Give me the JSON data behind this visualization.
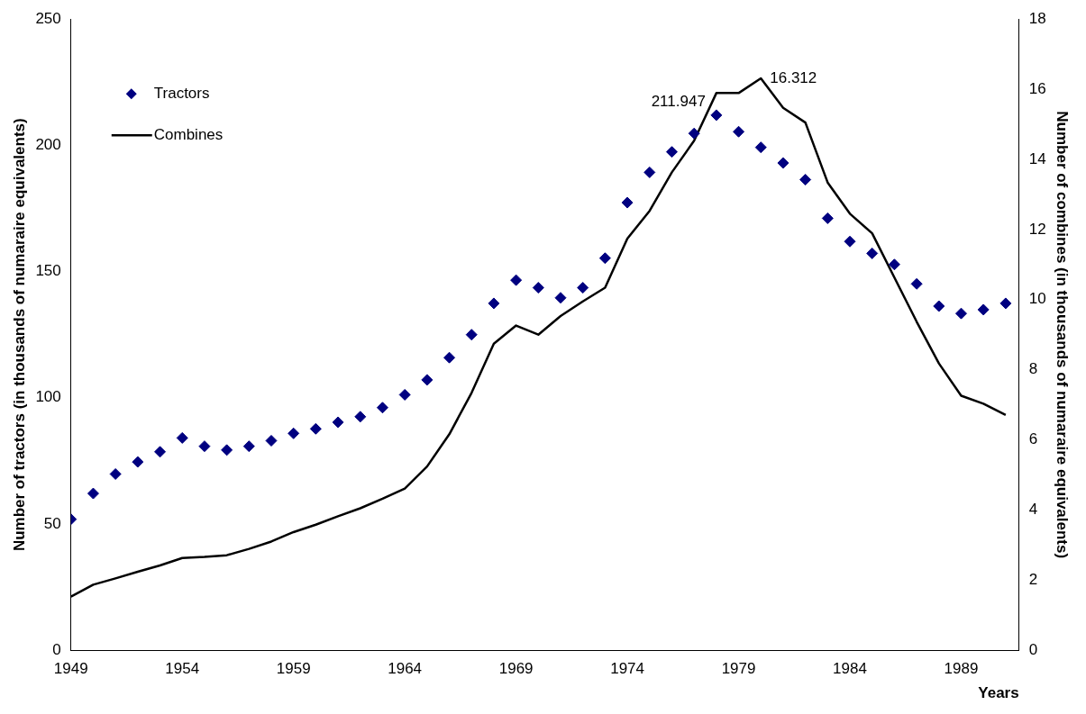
{
  "chart_data": {
    "type": "scatter",
    "xlabel": "Years",
    "ylabel": "Number of tractors (in thousands of numaraire equivalents)",
    "y2label": "Number of combines (in thousands of numaraire equivalents)",
    "x": [
      1949,
      1950,
      1951,
      1952,
      1953,
      1954,
      1955,
      1956,
      1957,
      1958,
      1959,
      1960,
      1961,
      1962,
      1963,
      1964,
      1965,
      1966,
      1967,
      1968,
      1969,
      1970,
      1971,
      1972,
      1973,
      1974,
      1975,
      1976,
      1977,
      1978,
      1979,
      1980,
      1981,
      1982,
      1983,
      1984,
      1985,
      1986,
      1987,
      1988,
      1989,
      1990,
      1991
    ],
    "series": [
      {
        "name": "Tractors",
        "type": "scatter",
        "marker": "diamond",
        "color": "#000080",
        "values": [
          51.9,
          62.1,
          69.8,
          74.6,
          78.6,
          84.1,
          80.8,
          79.3,
          80.8,
          83.0,
          85.9,
          87.7,
          90.3,
          92.5,
          96.1,
          101.2,
          107.1,
          115.9,
          125.0,
          137.4,
          146.6,
          143.6,
          139.6,
          143.6,
          155.3,
          177.3,
          189.3,
          197.4,
          204.7,
          211.947,
          205.4,
          199.2,
          193.0,
          186.4,
          171.1,
          161.9,
          157.2,
          152.8,
          145.1,
          136.3,
          133.4,
          134.9,
          137.4
        ],
        "value_labels": [
          null,
          null,
          null,
          null,
          null,
          null,
          null,
          null,
          null,
          null,
          null,
          null,
          null,
          null,
          null,
          null,
          null,
          null,
          null,
          null,
          null,
          null,
          null,
          null,
          null,
          null,
          null,
          null,
          null,
          "211.947",
          null,
          null,
          null,
          null,
          null,
          null,
          null,
          null,
          null,
          null,
          null,
          null,
          null
        ]
      },
      {
        "name": "Combines",
        "type": "line",
        "axis": "y2",
        "marker": "none",
        "line_style": "solid",
        "color": "#000000",
        "values": [
          1.53,
          1.87,
          2.05,
          2.24,
          2.42,
          2.63,
          2.66,
          2.71,
          2.89,
          3.1,
          3.37,
          3.58,
          3.82,
          4.05,
          4.32,
          4.61,
          5.24,
          6.16,
          7.34,
          8.74,
          9.26,
          9.0,
          9.53,
          9.95,
          10.34,
          11.74,
          12.53,
          13.63,
          14.53,
          15.89,
          15.89,
          16.312,
          15.47,
          15.05,
          13.34,
          12.45,
          11.89,
          10.63,
          9.37,
          8.18,
          7.26,
          7.03,
          6.71
        ],
        "value_labels": [
          null,
          null,
          null,
          null,
          null,
          null,
          null,
          null,
          null,
          null,
          null,
          null,
          null,
          null,
          null,
          null,
          null,
          null,
          null,
          null,
          null,
          null,
          null,
          null,
          null,
          null,
          null,
          null,
          null,
          null,
          null,
          "16.312",
          null,
          null,
          null,
          null,
          null,
          null,
          null,
          null,
          null,
          null,
          null
        ]
      }
    ],
    "xlim": [
      1949,
      1991.6
    ],
    "xticks": [
      1949,
      1954,
      1959,
      1964,
      1969,
      1974,
      1979,
      1984,
      1989
    ],
    "ylim": [
      0,
      250
    ],
    "yticks": [
      0,
      50,
      100,
      150,
      200,
      250
    ],
    "y2lim": [
      0,
      18
    ],
    "y2ticks": [
      0,
      2,
      4,
      6,
      8,
      10,
      12,
      14,
      16,
      18
    ],
    "grid": false,
    "legend": "top left"
  }
}
